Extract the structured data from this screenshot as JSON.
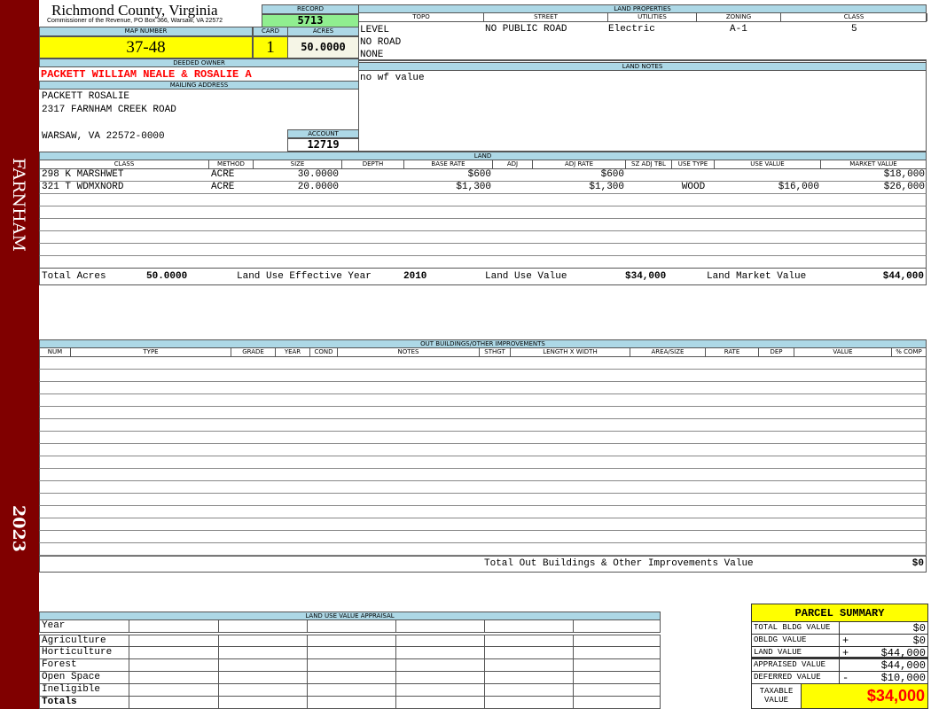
{
  "sidebar": {
    "district": "FARNHAM",
    "year": "2023"
  },
  "header": {
    "county": "Richmond County, Virginia",
    "office": "Commissioner of the Revenue, PO Box 366, Warsaw, VA 22572",
    "record_label": "RECORD",
    "record": "5713",
    "map_label": "MAP NUMBER",
    "map": "37-48",
    "card_label": "CARD",
    "card": "1",
    "acres_label": "ACRES",
    "acres": "50.0000"
  },
  "owner": {
    "label": "DEEDED OWNER",
    "name": "PACKETT WILLIAM NEALE & ROSALIE A",
    "mail_label": "MAILING ADDRESS",
    "line1": "PACKETT ROSALIE",
    "line2": "2317 FARNHAM CREEK ROAD",
    "line3": "WARSAW, VA 22572-0000",
    "account_label": "ACCOUNT",
    "account": "12719"
  },
  "land_properties": {
    "label": "LAND PROPERTIES",
    "headers": [
      "TOPO",
      "STREET",
      "UTILITIES",
      "ZONING",
      "CLASS"
    ],
    "topo": [
      "LEVEL",
      "NO ROAD",
      "NONE"
    ],
    "street": "NO PUBLIC ROAD",
    "utilities": "Electric",
    "zoning": "A-1",
    "class": "5"
  },
  "land_notes": {
    "label": "LAND NOTES",
    "text": "no wf value"
  },
  "land": {
    "label": "LAND",
    "headers": [
      "CLASS",
      "METHOD",
      "SIZE",
      "DEPTH",
      "BASE RATE",
      "ADJ",
      "ADJ RATE",
      "SZ ADJ TBL",
      "USE TYPE",
      "USE VALUE",
      "MARKET VALUE"
    ],
    "rows": [
      [
        "298 K MARSHWET",
        "ACRE",
        "30.0000",
        "",
        "$600",
        "",
        "$600",
        "",
        "",
        "",
        "$18,000"
      ],
      [
        "321 T WDMXNORD",
        "ACRE",
        "20.0000",
        "",
        "$1,300",
        "",
        "$1,300",
        "",
        "WOOD",
        "$16,000",
        "$26,000"
      ]
    ],
    "totals": {
      "acres_label": "Total Acres",
      "acres": "50.0000",
      "year_label": "Land Use Effective Year",
      "year": "2010",
      "use_label": "Land Use Value",
      "use": "$34,000",
      "market_label": "Land Market Value",
      "market": "$44,000"
    }
  },
  "outbuildings": {
    "label": "OUT BUILDINGS/OTHER IMPROVEMENTS",
    "headers": [
      "NUM",
      "TYPE",
      "GRADE",
      "YEAR",
      "COND",
      "NOTES",
      "STHGT",
      "LENGTH X WIDTH",
      "AREA/SIZE",
      "RATE",
      "DEP",
      "VALUE",
      "% COMP"
    ],
    "total_label": "Total Out Buildings & Other Improvements Value",
    "total": "$0"
  },
  "land_use": {
    "label": "LAND USE VALUE APPRAISAL",
    "rows": [
      "Year",
      "Agriculture",
      "Horticulture",
      "Forest",
      "Open Space",
      "Ineligible",
      "Totals"
    ]
  },
  "parcel_summary": {
    "title": "PARCEL SUMMARY",
    "rows": [
      {
        "label": "TOTAL BLDG VALUE",
        "op": "",
        "value": "$0"
      },
      {
        "label": "OBLDG VALUE",
        "op": "+",
        "value": "$0"
      },
      {
        "label": "LAND VALUE",
        "op": "+",
        "value": "$44,000"
      },
      {
        "label": "APPRAISED VALUE",
        "op": "",
        "value": "$44,000"
      },
      {
        "label": "DEFERRED VALUE",
        "op": "-",
        "value": "$10,000"
      }
    ],
    "taxable_label": "TAXABLE VALUE",
    "taxable": "$34,000"
  },
  "colors": {
    "sidebar": "#800000",
    "label_bg": "#add8e6",
    "highlight": "#ffff00",
    "record_bg": "#90ee90",
    "owner": "#ff0000"
  }
}
